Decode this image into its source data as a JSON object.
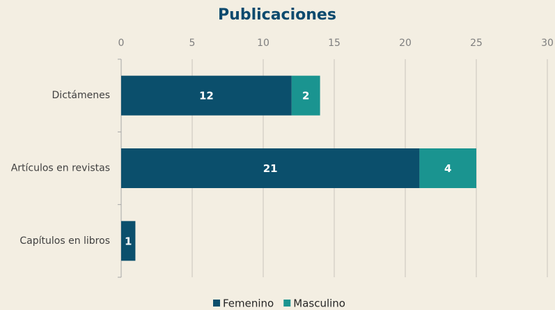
{
  "chart_data": {
    "type": "stacked-barh",
    "title": "Publicaciones",
    "categories": [
      "Dictámenes",
      "Artículos en revistas",
      "Capítulos en libros"
    ],
    "series": [
      {
        "name": "Femenino",
        "color": "#0b4f6c",
        "values": [
          12,
          21,
          1
        ]
      },
      {
        "name": "Masculino",
        "color": "#1a9490",
        "values": [
          2,
          4,
          null
        ]
      }
    ],
    "xlim": [
      0,
      30
    ],
    "xticks": [
      0,
      5,
      10,
      15,
      20,
      25,
      30
    ],
    "grid": true,
    "legend": "bottom"
  }
}
